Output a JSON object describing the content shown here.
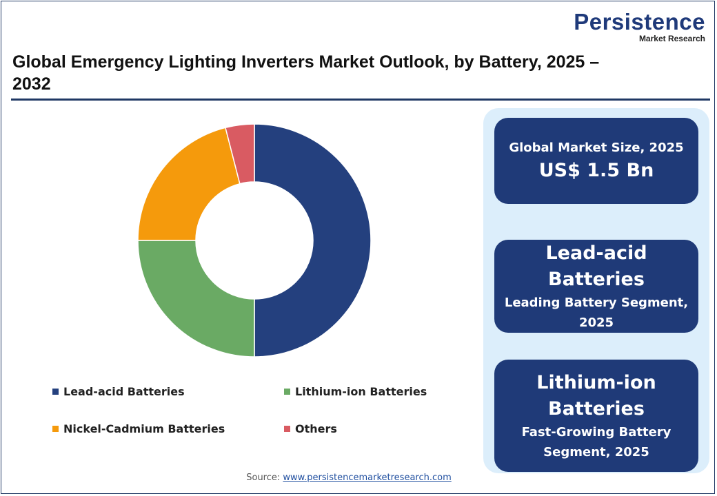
{
  "logo": {
    "main": "Persistence",
    "sub": "Market Research"
  },
  "title": "Global Emergency Lighting Inverters Market Outlook, by Battery, 2025 – 2032",
  "chart_data": {
    "type": "pie",
    "donut": true,
    "categories": [
      "Lead-acid Batteries",
      "Lithium-ion Batteries",
      "Nickel-Cadmium Batteries",
      "Others"
    ],
    "values": [
      50,
      25,
      21,
      4
    ],
    "colors": [
      "#24407e",
      "#6aaa64",
      "#f59a0c",
      "#d95b62"
    ],
    "legend_position": "bottom"
  },
  "legend": {
    "items": [
      {
        "label": "Lead-acid Batteries",
        "color": "#24407e"
      },
      {
        "label": "Lithium-ion Batteries",
        "color": "#6aaa64"
      },
      {
        "label": "Nickel-Cadmium Batteries",
        "color": "#f59a0c"
      },
      {
        "label": "Others",
        "color": "#d95b62"
      }
    ]
  },
  "cards": {
    "market_size": {
      "label": "Global Market Size, 2025",
      "value": "US$ 1.5 Bn"
    },
    "leading": {
      "title": "Lead-acid Batteries",
      "subtitle": "Leading Battery Segment, 2025"
    },
    "fast_growing": {
      "title": "Lithium-ion Batteries",
      "subtitle": "Fast-Growing Battery Segment, 2025"
    }
  },
  "source": {
    "label": "Source:",
    "link_text": "www.persistencemarketresearch.com"
  },
  "colors": {
    "brand": "#1f3a78",
    "panel": "#dceefb"
  }
}
